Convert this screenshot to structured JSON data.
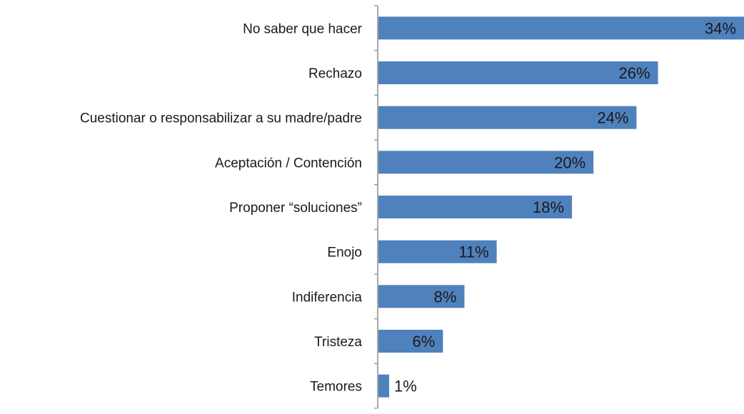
{
  "chart_data": {
    "type": "bar",
    "orientation": "horizontal",
    "categories": [
      "No saber que hacer",
      "Rechazo",
      "Cuestionar o responsabilizar a su madre/padre",
      "Aceptación / Contención",
      "Proponer “soluciones”",
      "Enojo",
      "Indiferencia",
      "Tristeza",
      "Temores"
    ],
    "values": [
      34,
      26,
      24,
      20,
      18,
      11,
      8,
      6,
      1
    ],
    "value_labels": [
      "34%",
      "26%",
      "24%",
      "20%",
      "18%",
      "11%",
      "8%",
      "6%",
      "1%"
    ],
    "unit": "%",
    "xlim": [
      0,
      34
    ],
    "bar_color": "#4f81bd",
    "grid": false,
    "legend": "none"
  }
}
